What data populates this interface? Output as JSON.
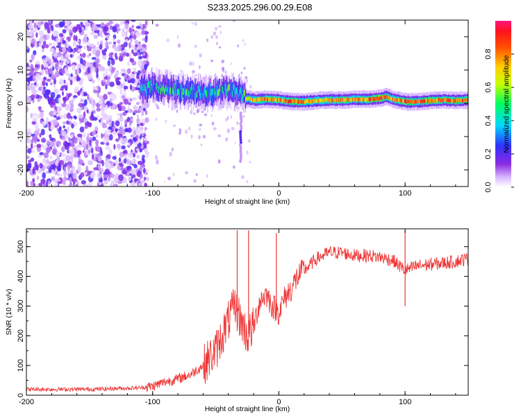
{
  "title": "S233.2025.296.00.29.E08",
  "chart_data": [
    {
      "type": "heatmap",
      "title": "S233.2025.296.00.29.E08",
      "xlabel": "Height of straight line (km)",
      "ylabel": "Frequency (Hz)",
      "xlim": [
        -200,
        150
      ],
      "ylim": [
        -25,
        25
      ],
      "xticks": [
        -200,
        -100,
        0,
        100
      ],
      "yticks": [
        -20,
        -10,
        0,
        10,
        20
      ],
      "colorbar": {
        "label": "Normalized spectral amplitude",
        "range": [
          0,
          1
        ],
        "ticks": [
          "0.0",
          "0.2",
          "0.4",
          "0.6",
          "0.8"
        ],
        "tick_values": [
          0.0,
          0.2,
          0.4,
          0.6,
          0.8
        ]
      },
      "ridge": {
        "x": [
          -110,
          -100,
          -90,
          -80,
          -70,
          -60,
          -50,
          -40,
          -30,
          -26,
          -20,
          -10,
          0,
          10,
          20,
          30,
          40,
          50,
          60,
          70,
          80,
          85,
          90,
          100,
          110,
          120,
          130,
          140,
          150
        ],
        "frequency": [
          4,
          5,
          4.5,
          4,
          3.5,
          3,
          3.5,
          4,
          3,
          1.5,
          1,
          1.2,
          1,
          0.5,
          0.5,
          0.8,
          1,
          1,
          1.2,
          1.2,
          1.5,
          2,
          1.2,
          0.5,
          0.5,
          0.8,
          1,
          0.8,
          1
        ],
        "amplitude": [
          0.35,
          0.4,
          0.45,
          0.45,
          0.45,
          0.45,
          0.45,
          0.45,
          0.4,
          0.6,
          0.75,
          0.8,
          0.75,
          0.85,
          0.75,
          0.7,
          0.75,
          0.8,
          0.75,
          0.8,
          0.9,
          0.8,
          0.75,
          0.85,
          0.8,
          0.85,
          0.8,
          0.8,
          0.8
        ]
      },
      "noise_region_km": [
        -200,
        -110
      ]
    },
    {
      "type": "line",
      "xlabel": "Height of straight line (km)",
      "ylabel": "SNR (10 * v/v)",
      "xlim": [
        -200,
        150
      ],
      "ylim": [
        0,
        560
      ],
      "xticks": [
        -200,
        -100,
        0,
        100
      ],
      "yticks": [
        0,
        100,
        200,
        300,
        400,
        500
      ],
      "series": [
        {
          "name": "SNR",
          "color": "#ee3333",
          "x": [
            -200,
            -150,
            -110,
            -100,
            -90,
            -80,
            -70,
            -60,
            -50,
            -45,
            -40,
            -35,
            -30,
            -25,
            -20,
            -15,
            -10,
            -5,
            0,
            5,
            10,
            15,
            20,
            30,
            40,
            50,
            60,
            70,
            80,
            90,
            100,
            110,
            120,
            130,
            140,
            150
          ],
          "values": [
            20,
            20,
            25,
            30,
            45,
            55,
            70,
            100,
            150,
            200,
            250,
            300,
            250,
            200,
            230,
            320,
            340,
            300,
            280,
            330,
            360,
            400,
            420,
            460,
            480,
            480,
            470,
            470,
            465,
            455,
            420,
            435,
            440,
            445,
            450,
            460
          ]
        }
      ],
      "spikes": [
        {
          "x": -33,
          "value": 555
        },
        {
          "x": -24,
          "value": 555
        },
        {
          "x": -2,
          "value": 545
        },
        {
          "x": 100,
          "value": 300
        },
        {
          "x": 100,
          "value": 555
        }
      ]
    }
  ]
}
